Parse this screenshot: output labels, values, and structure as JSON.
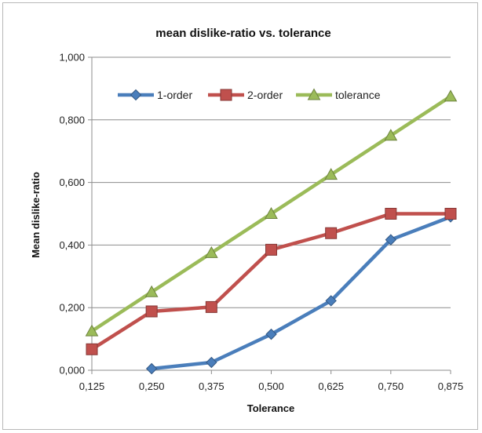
{
  "chart_data": {
    "type": "line",
    "title": "mean dislike-ratio vs. tolerance",
    "xlabel": "Tolerance",
    "ylabel": "Mean dislike-ratio",
    "x": [
      "0,125",
      "0,250",
      "0,375",
      "0,500",
      "0,625",
      "0,750",
      "0,875"
    ],
    "ylim": [
      0,
      1
    ],
    "yticks": [
      "0,000",
      "0,200",
      "0,400",
      "0,600",
      "0,800",
      "1,000"
    ],
    "grid": true,
    "legend_position": "top-left",
    "series": [
      {
        "name": "1-order",
        "color": "#4a7ebb",
        "marker": "diamond",
        "values": [
          null,
          0.005,
          0.025,
          0.115,
          0.222,
          0.417,
          0.49
        ]
      },
      {
        "name": "2-order",
        "color": "#c0504d",
        "marker": "square",
        "values": [
          0.067,
          0.188,
          0.202,
          0.385,
          0.438,
          0.5,
          0.5
        ]
      },
      {
        "name": "tolerance",
        "color": "#9bbb59",
        "marker": "triangle",
        "values": [
          0.125,
          0.25,
          0.375,
          0.5,
          0.625,
          0.75,
          0.875
        ]
      }
    ]
  }
}
